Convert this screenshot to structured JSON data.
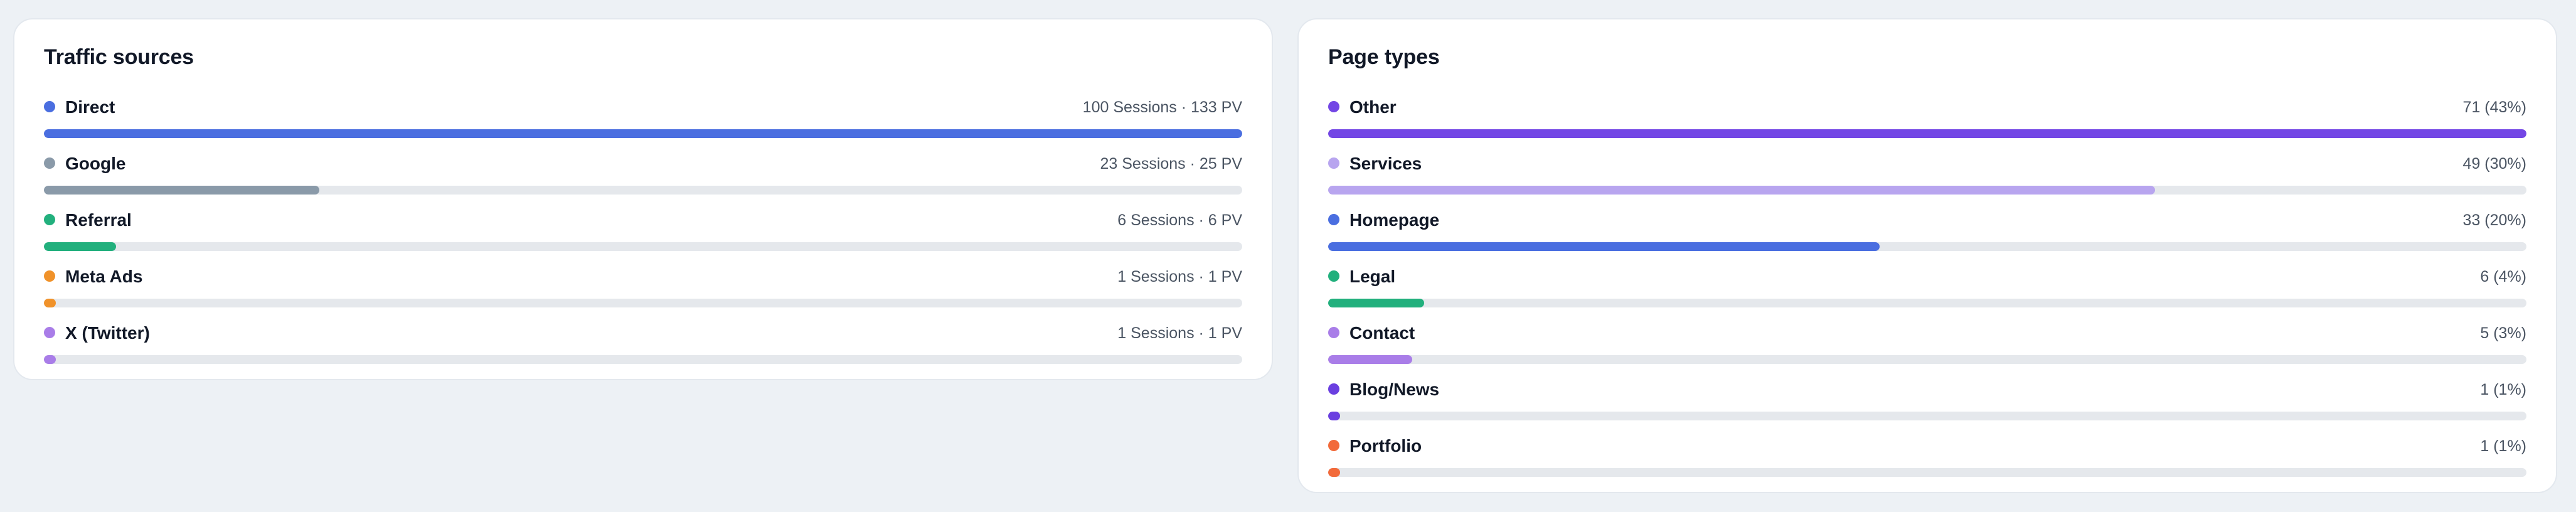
{
  "traffic_sources": {
    "title": "Traffic sources",
    "items": [
      {
        "label": "Direct",
        "stat": "100 Sessions · 133 PV",
        "color": "#4a6ee0",
        "fraction": 1.0
      },
      {
        "label": "Google",
        "stat": "23 Sessions · 25 PV",
        "color": "#8a9aa9",
        "fraction": 0.23
      },
      {
        "label": "Referral",
        "stat": "6 Sessions · 6 PV",
        "color": "#22b07d",
        "fraction": 0.06
      },
      {
        "label": "Meta Ads",
        "stat": "1 Sessions · 1 PV",
        "color": "#f0922a",
        "fraction": 0.01
      },
      {
        "label": "X (Twitter)",
        "stat": "1 Sessions · 1 PV",
        "color": "#a97de8",
        "fraction": 0.01
      }
    ]
  },
  "page_types": {
    "title": "Page types",
    "items": [
      {
        "label": "Other",
        "stat": "71 (43%)",
        "color": "#7346e5",
        "fraction": 1.0
      },
      {
        "label": "Services",
        "stat": "49 (30%)",
        "color": "#b8a5ef",
        "fraction": 0.69
      },
      {
        "label": "Homepage",
        "stat": "33 (20%)",
        "color": "#4a6ee0",
        "fraction": 0.46
      },
      {
        "label": "Legal",
        "stat": "6 (4%)",
        "color": "#22b07d",
        "fraction": 0.08
      },
      {
        "label": "Contact",
        "stat": "5 (3%)",
        "color": "#a97de8",
        "fraction": 0.07
      },
      {
        "label": "Blog/News",
        "stat": "1 (1%)",
        "color": "#6a3fe0",
        "fraction": 0.01
      },
      {
        "label": "Portfolio",
        "stat": "1 (1%)",
        "color": "#f26a3a",
        "fraction": 0.01
      }
    ]
  }
}
